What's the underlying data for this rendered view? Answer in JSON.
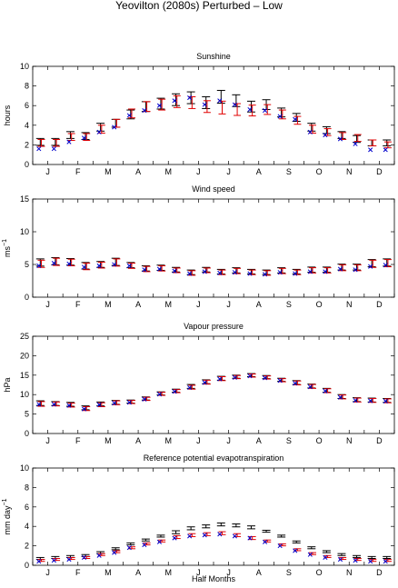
{
  "figure": {
    "title": "Yeovilton (2080s) Perturbed – Low",
    "xlabel": "Half Months",
    "month_labels": [
      "J",
      "F",
      "M",
      "A",
      "M",
      "J",
      "J",
      "A",
      "S",
      "O",
      "N",
      "D"
    ],
    "colors": {
      "observed": "#000000",
      "perturbed": "#e00000",
      "simulated": "#0000cc"
    }
  },
  "chart_data": [
    {
      "type": "scatter",
      "title": "Sunshine",
      "ylabel": "hours",
      "ylim": [
        0,
        10
      ],
      "yticks": [
        "0",
        "2",
        "4",
        "6",
        "8",
        "10"
      ],
      "series": [
        {
          "values": [
            2.3,
            2.3,
            3.0,
            2.9,
            3.8,
            4.2,
            5.1,
            5.9,
            6.2,
            6.6,
            6.8,
            6.3,
            6.9,
            6.5,
            5.9,
            6.1,
            5.3,
            4.8,
            3.8,
            3.5,
            3.0,
            2.6,
            2.2,
            2.2
          ]
        },
        {
          "values": [
            2.2,
            2.2,
            2.8,
            2.8,
            3.6,
            4.2,
            5.2,
            5.9,
            6.1,
            6.4,
            6.3,
            5.9,
            5.8,
            5.6,
            5.5,
            5.6,
            5.1,
            4.5,
            3.6,
            3.3,
            2.9,
            2.7,
            2.2,
            2.0
          ]
        },
        {
          "values": [
            1.6,
            1.6,
            2.3,
            2.7,
            3.3,
            3.8,
            5.0,
            5.5,
            6.0,
            6.5,
            6.8,
            6.1,
            6.5,
            6.1,
            5.6,
            5.5,
            4.9,
            4.6,
            3.3,
            3.0,
            2.6,
            2.1,
            1.5,
            1.5
          ]
        }
      ],
      "errors": [
        0.35,
        0.35,
        0.35,
        0.35,
        0.4,
        0.4,
        0.45,
        0.5,
        0.55,
        0.6,
        0.6,
        0.6,
        0.65,
        0.6,
        0.55,
        0.5,
        0.45,
        0.4,
        0.4,
        0.35,
        0.35,
        0.35,
        0.3,
        0.3
      ]
    },
    {
      "type": "scatter",
      "title": "Wind speed",
      "ylabel": "ms",
      "ylabel_sup": "−1",
      "ylim": [
        0,
        15
      ],
      "yticks": [
        "0",
        "5",
        "10",
        "15"
      ],
      "series": [
        {
          "values": [
            5.3,
            5.5,
            5.4,
            4.8,
            5.0,
            5.4,
            4.9,
            4.4,
            4.5,
            4.2,
            3.8,
            4.2,
            3.9,
            4.1,
            3.9,
            3.8,
            4.1,
            3.9,
            4.2,
            4.2,
            4.6,
            4.6,
            5.2,
            5.3
          ]
        },
        {
          "values": [
            5.1,
            5.4,
            5.3,
            4.7,
            4.9,
            5.3,
            4.8,
            4.3,
            4.4,
            4.1,
            3.7,
            4.1,
            3.8,
            4.0,
            3.8,
            3.7,
            4.0,
            3.8,
            4.1,
            4.1,
            4.5,
            4.5,
            5.1,
            5.2
          ]
        },
        {
          "values": [
            4.8,
            5.2,
            5.1,
            4.6,
            4.8,
            5.0,
            4.8,
            4.2,
            4.3,
            4.0,
            3.6,
            3.9,
            3.7,
            3.8,
            3.6,
            3.5,
            3.8,
            3.6,
            3.9,
            3.9,
            4.3,
            4.2,
            4.7,
            4.9
          ]
        }
      ],
      "errors": [
        0.55,
        0.55,
        0.5,
        0.5,
        0.45,
        0.55,
        0.4,
        0.4,
        0.4,
        0.35,
        0.35,
        0.35,
        0.35,
        0.4,
        0.35,
        0.35,
        0.4,
        0.35,
        0.4,
        0.4,
        0.45,
        0.45,
        0.55,
        0.55
      ]
    },
    {
      "type": "scatter",
      "title": "Vapour pressure",
      "ylabel": "hPa",
      "ylim": [
        0,
        25
      ],
      "yticks": [
        "0",
        "5",
        "10",
        "15",
        "20",
        "25"
      ],
      "series": [
        {
          "values": [
            7.8,
            7.7,
            7.5,
            6.6,
            7.6,
            8.0,
            8.2,
            9.0,
            10.3,
            11.0,
            12.1,
            13.3,
            14.2,
            14.6,
            15.0,
            14.5,
            13.8,
            13.1,
            12.2,
            11.1,
            9.5,
            8.7,
            8.6,
            8.5
          ]
        },
        {
          "values": [
            7.6,
            7.6,
            7.3,
            6.4,
            7.4,
            7.9,
            8.1,
            8.9,
            10.2,
            10.9,
            11.9,
            13.2,
            14.1,
            14.5,
            14.9,
            14.4,
            13.7,
            13.0,
            12.1,
            11.0,
            9.4,
            8.6,
            8.5,
            8.4
          ]
        },
        {
          "values": [
            7.5,
            7.5,
            7.2,
            6.3,
            7.4,
            7.8,
            8.0,
            8.8,
            10.1,
            10.8,
            11.8,
            13.1,
            14.0,
            14.4,
            14.8,
            14.3,
            13.6,
            12.9,
            12.0,
            10.9,
            9.3,
            8.5,
            8.4,
            8.3
          ]
        }
      ],
      "errors": [
        0.6,
        0.5,
        0.5,
        0.5,
        0.5,
        0.5,
        0.4,
        0.4,
        0.4,
        0.4,
        0.5,
        0.5,
        0.5,
        0.4,
        0.4,
        0.4,
        0.4,
        0.5,
        0.5,
        0.5,
        0.5,
        0.5,
        0.5,
        0.5
      ]
    },
    {
      "type": "scatter",
      "title": "Reference potential evapotranspiration",
      "ylabel": "mm day",
      "ylabel_sup": "−1",
      "ylim": [
        0,
        10
      ],
      "yticks": [
        "0",
        "2",
        "4",
        "6",
        "8",
        "10"
      ],
      "series": [
        {
          "values": [
            0.7,
            0.8,
            0.9,
            1.0,
            1.3,
            1.7,
            2.2,
            2.6,
            3.0,
            3.4,
            3.8,
            4.0,
            4.2,
            4.1,
            3.9,
            3.5,
            3.0,
            2.4,
            1.8,
            1.4,
            1.1,
            0.9,
            0.8,
            0.8
          ]
        },
        {
          "values": [
            0.5,
            0.6,
            0.7,
            0.8,
            1.1,
            1.4,
            1.8,
            2.2,
            2.5,
            2.9,
            3.1,
            3.2,
            3.3,
            3.1,
            2.8,
            2.5,
            2.1,
            1.6,
            1.2,
            0.9,
            0.7,
            0.6,
            0.5,
            0.5
          ]
        },
        {
          "values": [
            0.4,
            0.5,
            0.6,
            0.8,
            1.0,
            1.3,
            1.8,
            2.1,
            2.4,
            2.8,
            3.0,
            3.1,
            3.2,
            3.0,
            2.8,
            2.4,
            2.0,
            1.5,
            1.1,
            0.8,
            0.6,
            0.5,
            0.4,
            0.4
          ]
        }
      ],
      "errors": [
        0.1,
        0.1,
        0.1,
        0.1,
        0.1,
        0.1,
        0.1,
        0.1,
        0.1,
        0.15,
        0.15,
        0.15,
        0.15,
        0.15,
        0.15,
        0.1,
        0.1,
        0.1,
        0.1,
        0.1,
        0.1,
        0.1,
        0.1,
        0.1
      ]
    }
  ]
}
